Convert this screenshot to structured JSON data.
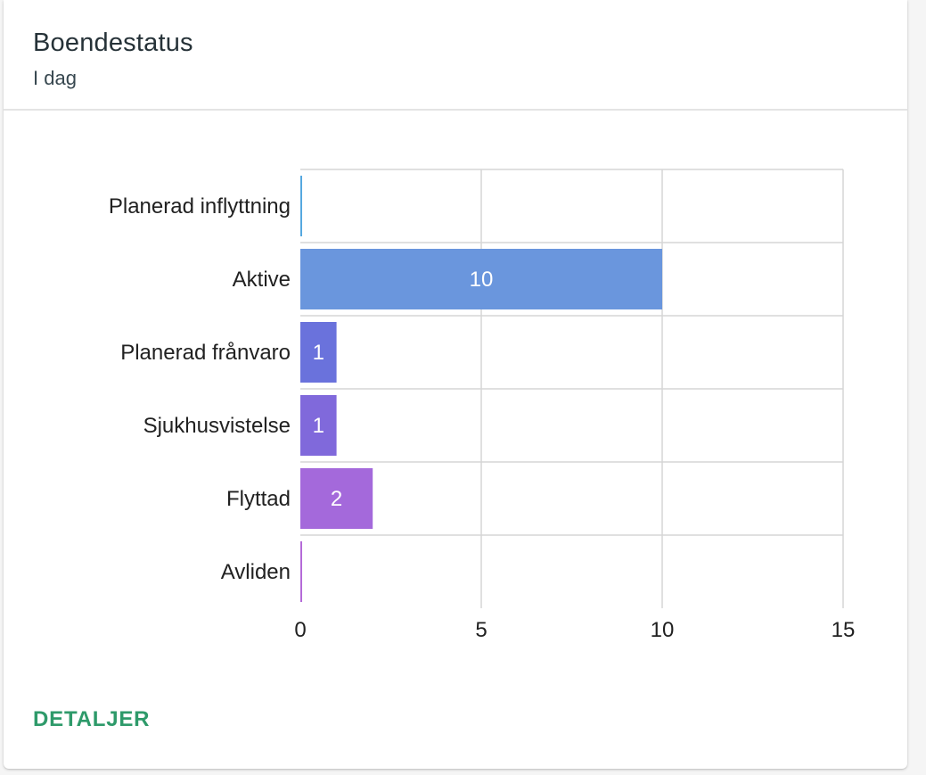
{
  "card": {
    "title": "Boendestatus",
    "subtitle": "I dag",
    "details_button": "DETALJER"
  },
  "chart_data": {
    "type": "bar",
    "orientation": "horizontal",
    "categories": [
      "Planerad inflyttning",
      "Aktive",
      "Planerad frånvaro",
      "Sjukhusvistelse",
      "Flyttad",
      "Avliden"
    ],
    "values": [
      0,
      10,
      1,
      1,
      2,
      0
    ],
    "colors": [
      "#55a8e0",
      "#6a96dd",
      "#6a72dc",
      "#8069db",
      "#a469db",
      "#b46ad8"
    ],
    "xlim": [
      0,
      15
    ],
    "xticks": [
      0,
      5,
      10,
      15
    ],
    "xlabel": "",
    "ylabel": "",
    "grid": true,
    "legend": "none"
  }
}
